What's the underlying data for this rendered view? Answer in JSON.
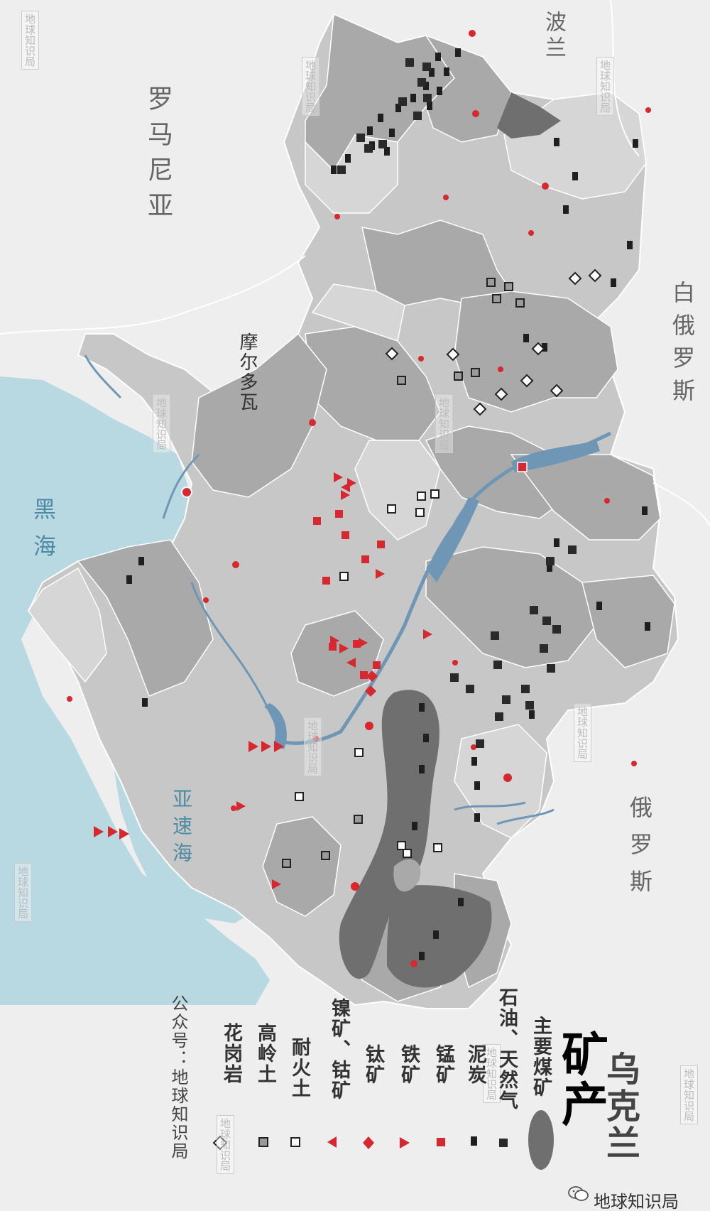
{
  "map": {
    "title_line1": "乌克兰",
    "title_line2": "矿产",
    "labels": {
      "poland": "波兰",
      "romania": "罗马尼亚",
      "moldova": "摩尔多瓦",
      "belarus": "白俄罗斯",
      "russia": "俄罗斯",
      "black_sea": "黑海",
      "azov_sea": "亚速海"
    },
    "watermark": "地球知识局",
    "account": "公众号：地球知识局",
    "brand": "地球知识局"
  },
  "legend": [
    {
      "symbol": "coal-field",
      "label": "主要煤矿"
    },
    {
      "symbol": "oil-gas",
      "label": "石油、天然气"
    },
    {
      "symbol": "peat",
      "label": "泥炭"
    },
    {
      "symbol": "manganese",
      "label": "锰矿"
    },
    {
      "symbol": "iron",
      "label": "铁矿"
    },
    {
      "symbol": "titanium",
      "label": "钛矿"
    },
    {
      "symbol": "nickel-cobalt",
      "label": "镍矿、钴矿"
    },
    {
      "symbol": "refractory-clay",
      "label": "耐火土"
    },
    {
      "symbol": "kaolin",
      "label": "高岭土"
    },
    {
      "symbol": "granite",
      "label": "花岗岩"
    }
  ],
  "colors": {
    "sea": "#b9d9e2",
    "land_outside": "#eeeeee",
    "region_light": "#c7c7c7",
    "region_dark": "#a9a9a9",
    "coal_field": "#6f6f6f",
    "red_symbol": "#d7282f",
    "river": "#6f97b5"
  }
}
